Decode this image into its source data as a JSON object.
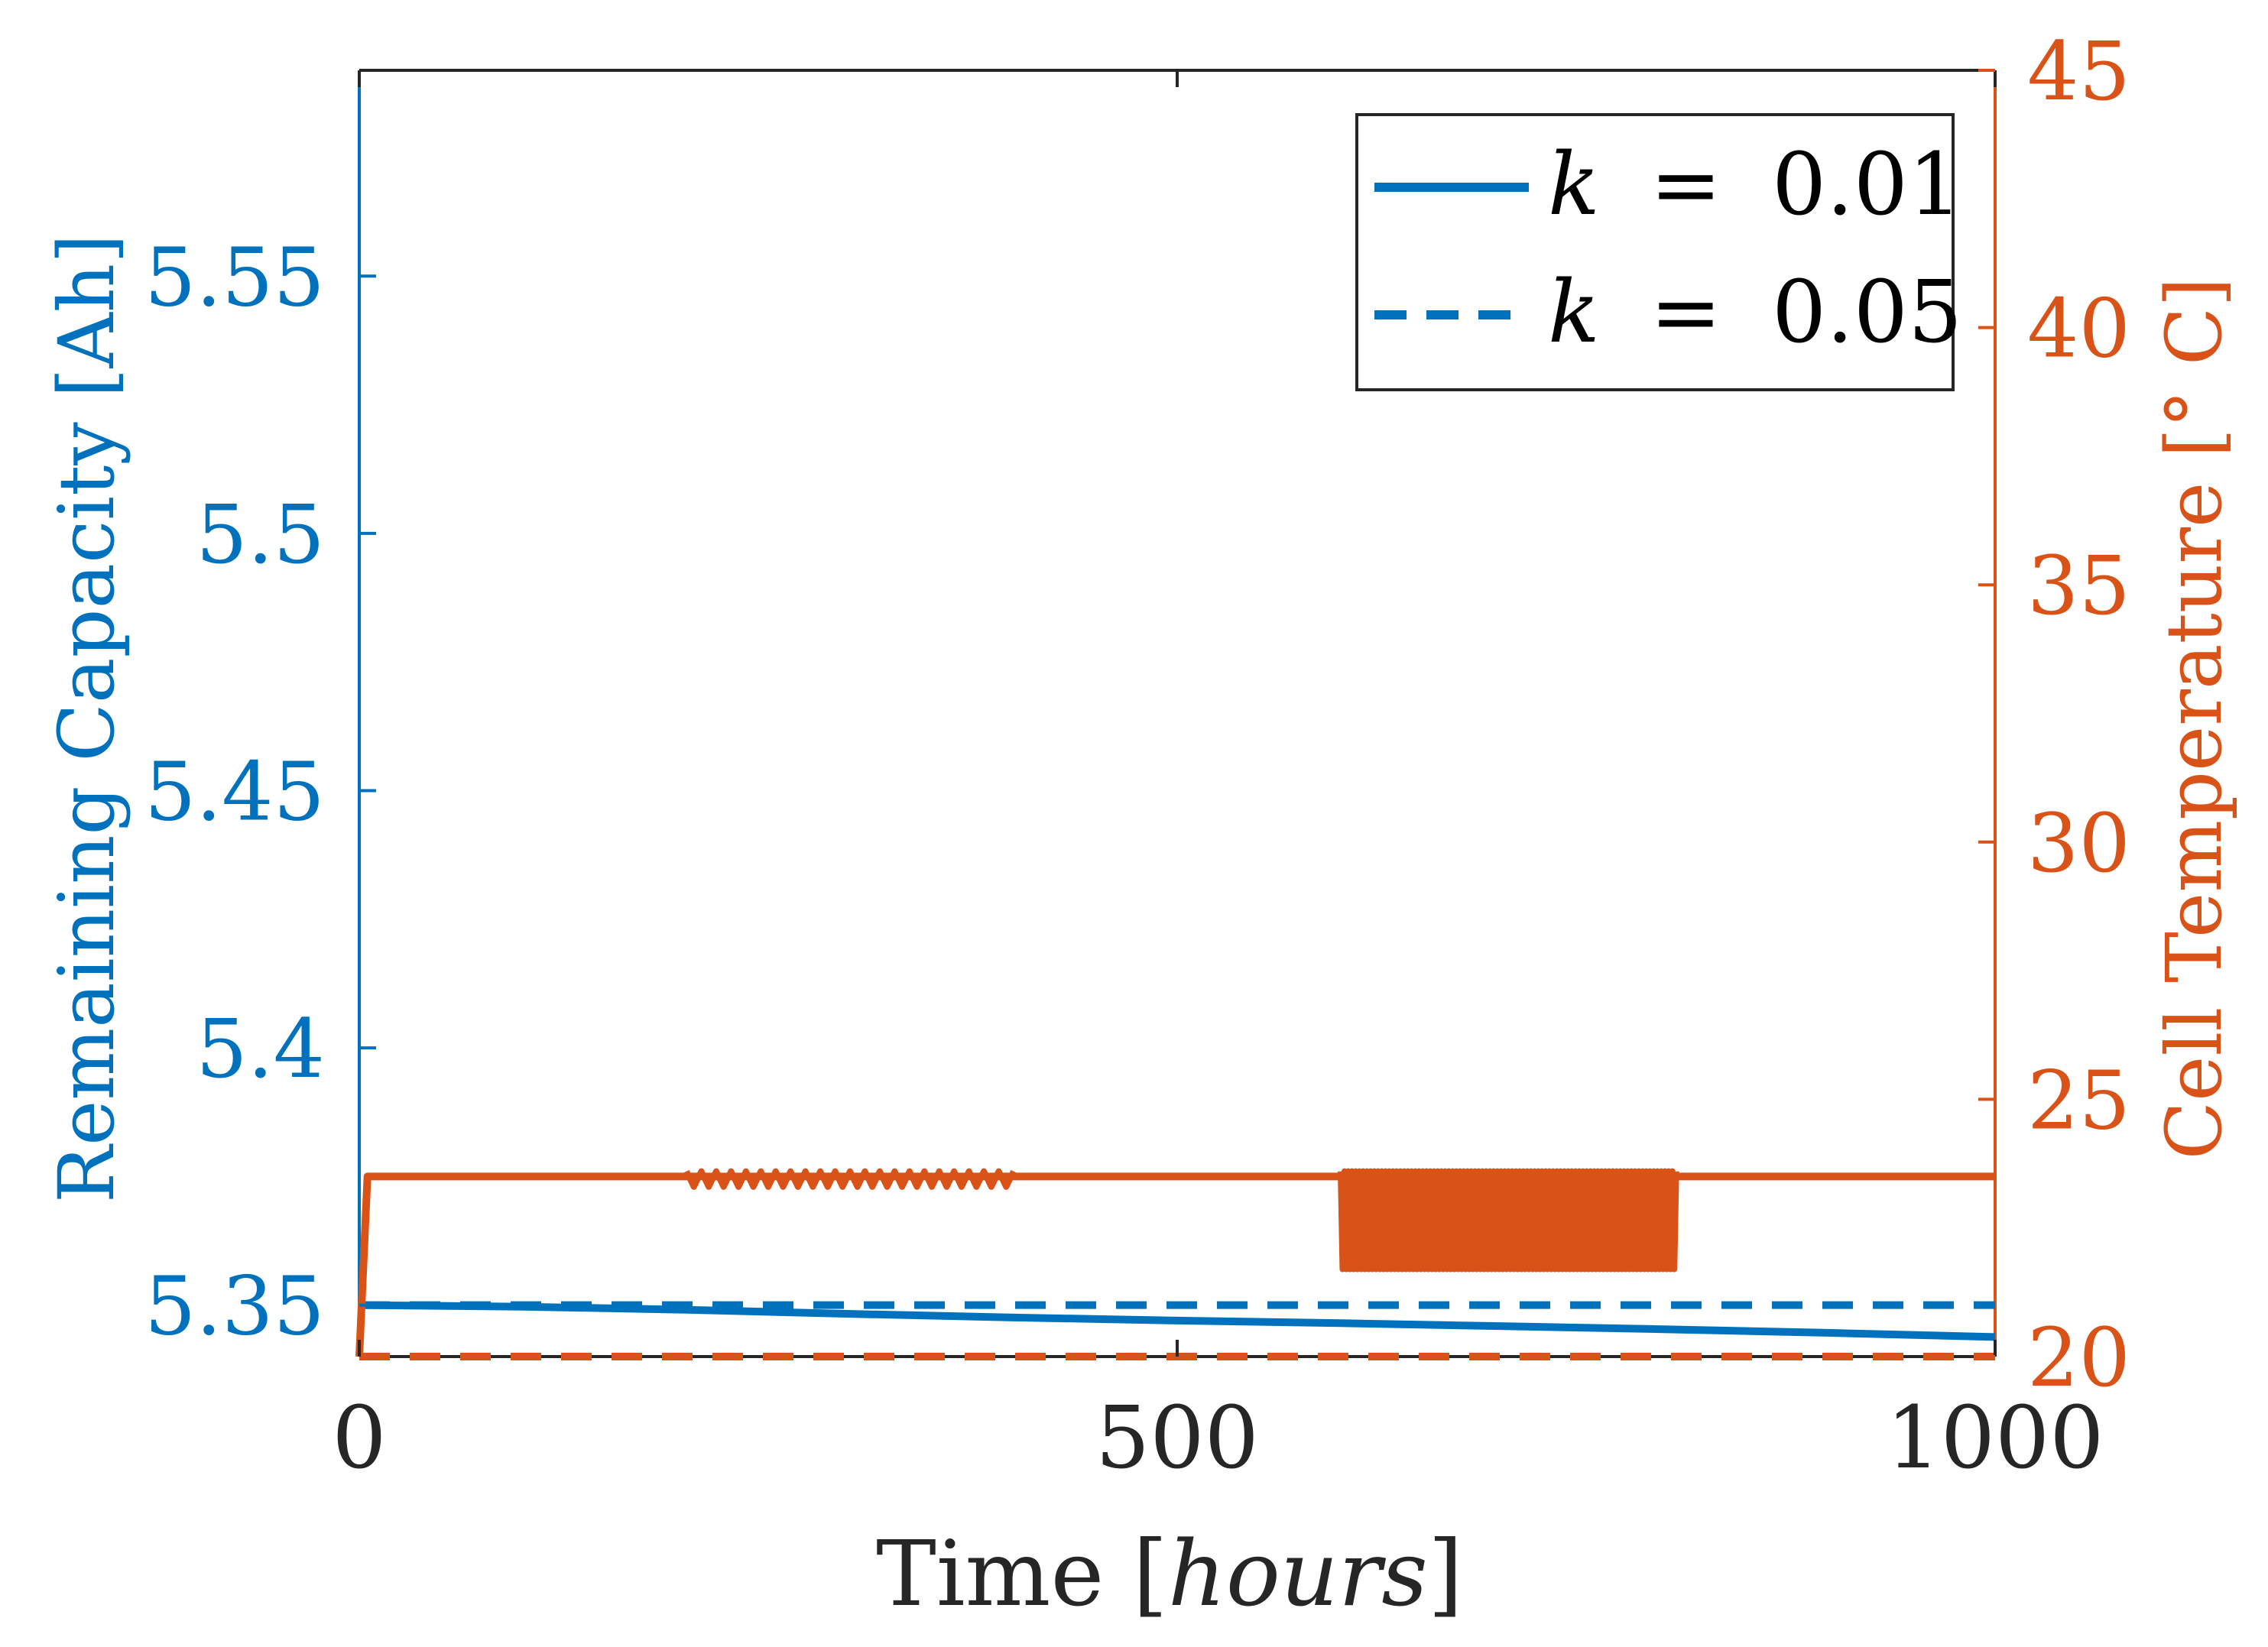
{
  "chart_data": {
    "type": "line",
    "xlabel_main": "Time",
    "xlabel_unit": "hours",
    "ylabel_left": "Remaining Capacity [Ah]",
    "ylabel_right": "Cell Temperature [° C]",
    "xlim": [
      0,
      1000
    ],
    "ylim_left": [
      5.34,
      5.59
    ],
    "ylim_right": [
      20,
      45
    ],
    "x_ticks": [
      {
        "value": 0,
        "label": "0"
      },
      {
        "value": 500,
        "label": "500"
      },
      {
        "value": 1000,
        "label": "1000"
      }
    ],
    "y_left_ticks": [
      {
        "value": 5.35,
        "label": "5.35"
      },
      {
        "value": 5.4,
        "label": "5.4"
      },
      {
        "value": 5.45,
        "label": "5.45"
      },
      {
        "value": 5.5,
        "label": "5.5"
      },
      {
        "value": 5.55,
        "label": "5.55"
      }
    ],
    "y_right_ticks": [
      {
        "value": 20,
        "label": "20"
      },
      {
        "value": 25,
        "label": "25"
      },
      {
        "value": 30,
        "label": "30"
      },
      {
        "value": 35,
        "label": "35"
      },
      {
        "value": 40,
        "label": "40"
      },
      {
        "value": 45,
        "label": "45"
      }
    ],
    "legend": {
      "placement": "top-right",
      "entries": [
        {
          "var": "k",
          "eq": "=",
          "value": "0.01",
          "style": "solid"
        },
        {
          "var": "k",
          "eq": "=",
          "value": "0.05",
          "style": "dashed"
        }
      ]
    },
    "series": [
      {
        "name": "capacity k=0.01",
        "axis": "left",
        "style": "solid",
        "color": "#0072BD",
        "x": [
          0,
          100,
          200,
          300,
          400,
          500,
          600,
          700,
          800,
          900,
          1000
        ],
        "y": [
          5.35,
          5.3497,
          5.3491,
          5.3483,
          5.3476,
          5.347,
          5.3465,
          5.3459,
          5.3453,
          5.3446,
          5.3438
        ]
      },
      {
        "name": "capacity k=0.05",
        "axis": "left",
        "style": "dashed",
        "color": "#0072BD",
        "x": [
          0,
          1000
        ],
        "y": [
          5.35,
          5.35
        ]
      },
      {
        "name": "temperature k=0.01",
        "axis": "right",
        "style": "solid",
        "color": "#D95319",
        "x": [
          0,
          5,
          1000
        ],
        "y": [
          20,
          23.5,
          23.5
        ],
        "oscillations": [
          {
            "x_start": 200,
            "x_end": 400,
            "low": 23.3,
            "high": 23.6,
            "count": 22
          },
          {
            "x_start": 600,
            "x_end": 805,
            "low": 21.7,
            "high": 23.6,
            "count": 90
          }
        ]
      },
      {
        "name": "temperature k=0.05",
        "axis": "right",
        "style": "dashed",
        "color": "#D95319",
        "x": [
          0,
          1000
        ],
        "y": [
          20,
          20
        ]
      }
    ],
    "colors": {
      "left_axis": "#0072BD",
      "right_axis": "#D95319",
      "text": "#262626",
      "frame": "#262626"
    }
  }
}
